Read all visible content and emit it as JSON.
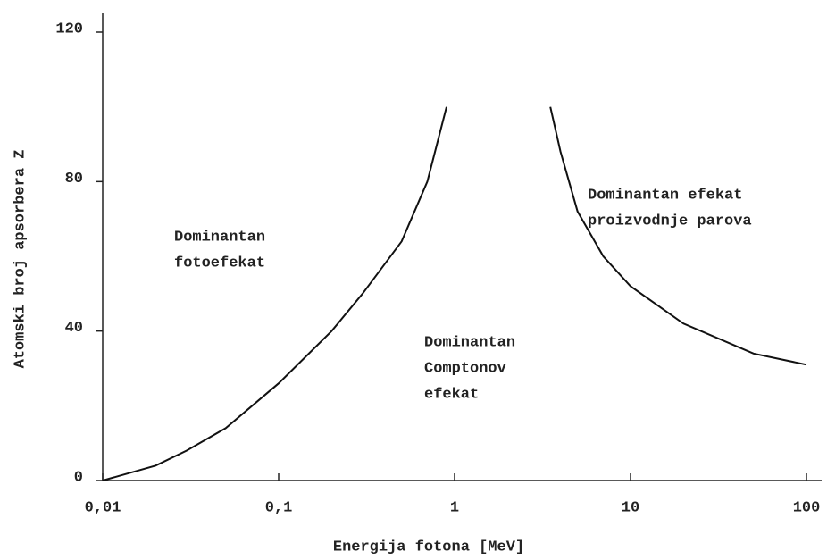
{
  "chart_data": {
    "type": "line",
    "xlabel": "Energija fotona [MeV]",
    "ylabel": "Atomski broj apsorbera Z",
    "xscale": "log",
    "xlim": [
      0.01,
      100
    ],
    "xticks": [
      {
        "value": 0.01,
        "label": "0,01"
      },
      {
        "value": 0.1,
        "label": "0,1"
      },
      1,
      10,
      100
    ],
    "ylim": [
      0,
      120
    ],
    "yticks": [
      0,
      40,
      80,
      120
    ],
    "series": [
      {
        "color": "#111111",
        "x": [
          0.01,
          0.02,
          0.03,
          0.05,
          0.1,
          0.2,
          0.3,
          0.5,
          0.7,
          0.9
        ],
        "values": [
          0,
          4,
          8,
          14,
          26,
          40,
          50,
          64,
          80,
          100
        ]
      },
      {
        "color": "#111111",
        "x": [
          3.5,
          4,
          5,
          7,
          10,
          20,
          50,
          100
        ],
        "values": [
          100,
          88,
          72,
          60,
          52,
          42,
          34,
          31
        ]
      }
    ],
    "annotations": [
      {
        "lines": [
          "Dominantan",
          "fotoefekat"
        ]
      },
      {
        "lines": [
          "Dominantan",
          "Comptonov",
          "efekat"
        ]
      },
      {
        "lines": [
          "Dominantan efekat",
          "proizvodnje parova"
        ]
      }
    ]
  }
}
